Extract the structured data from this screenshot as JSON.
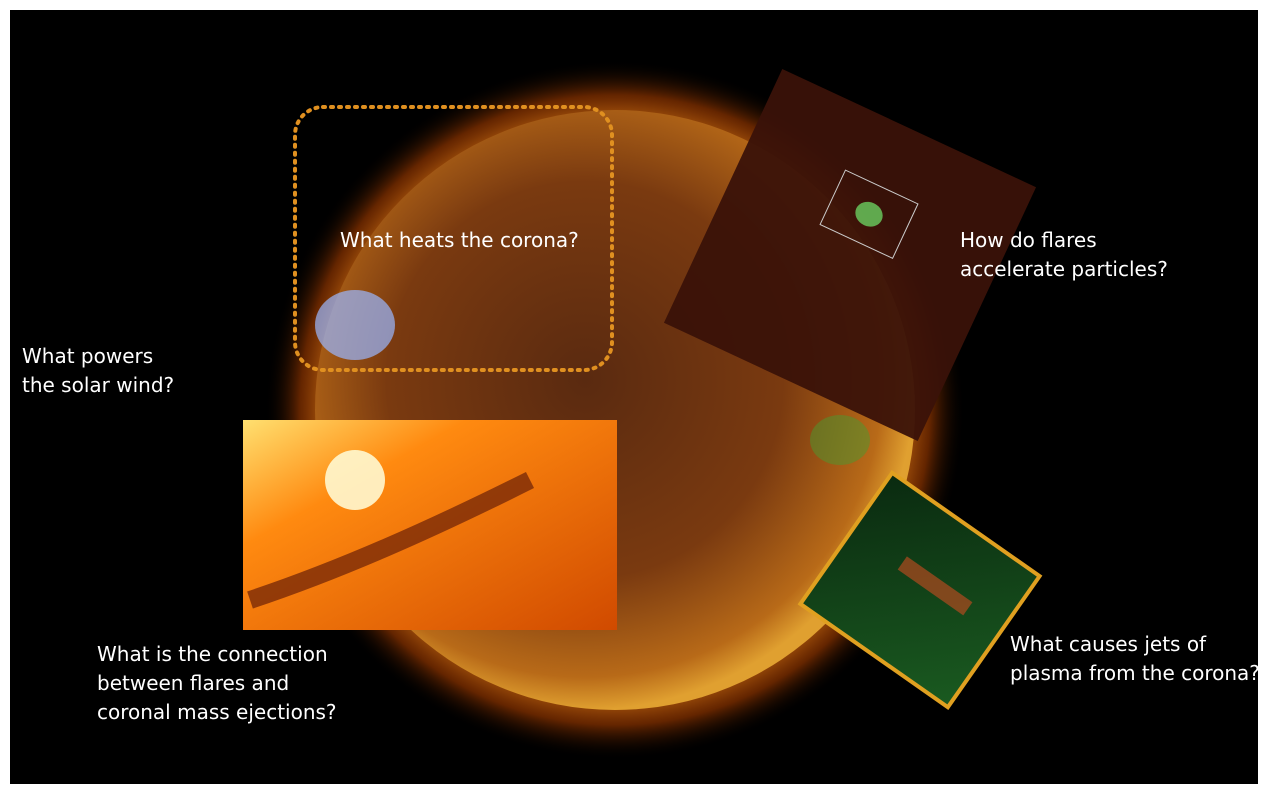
{
  "questions": [
    {
      "lines": [
        "What heats the corona?"
      ]
    },
    {
      "lines": [
        "How do flares",
        "accelerate particles?"
      ]
    },
    {
      "lines": [
        "What powers",
        "the solar wind?"
      ]
    },
    {
      "lines": [
        "What is the connection",
        "between flares and",
        "coronal mass ejections?"
      ]
    },
    {
      "lines": [
        "What causes jets of",
        "plasma from the corona?"
      ]
    }
  ]
}
